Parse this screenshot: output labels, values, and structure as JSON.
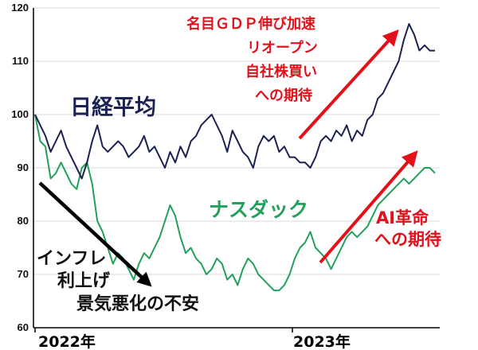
{
  "chart_data": {
    "type": "line",
    "ylim": [
      60,
      120
    ],
    "yticks": [
      "60",
      "70",
      "80",
      "90",
      "100",
      "110",
      "120"
    ],
    "x_labels": [
      "2022年",
      "2023年"
    ],
    "grid": "horizontal",
    "series": [
      {
        "name": "日経平均",
        "color": "#1b2252",
        "values": [
          100,
          98,
          96,
          93,
          95,
          97,
          94,
          92,
          90,
          88,
          91,
          95,
          98,
          94,
          93,
          94,
          95,
          94,
          92,
          93,
          94,
          96,
          93,
          94,
          92,
          90,
          93,
          91,
          94,
          92,
          95,
          96,
          98,
          99,
          100,
          98,
          96,
          93,
          97,
          95,
          93,
          92,
          90,
          94,
          96,
          95,
          96,
          93,
          94,
          92,
          92,
          91,
          91,
          90,
          92,
          95,
          96,
          95,
          97,
          96,
          98,
          95,
          97,
          96,
          99,
          100,
          103,
          104,
          106,
          108,
          110,
          114,
          117,
          115,
          112,
          113,
          112,
          112
        ]
      },
      {
        "name": "ナスダック",
        "color": "#22a05c",
        "values": [
          100,
          95,
          94,
          88,
          89,
          91,
          89,
          87,
          86,
          90,
          91,
          87,
          80,
          78,
          75,
          72,
          74,
          73,
          71,
          69,
          72,
          74,
          73,
          75,
          77,
          80,
          83,
          81,
          77,
          74,
          75,
          73,
          72,
          70,
          71,
          73,
          72,
          69,
          70,
          68,
          71,
          73,
          72,
          70,
          69,
          68,
          67,
          67,
          68,
          70,
          73,
          75,
          76,
          78,
          75,
          74,
          73,
          71,
          73,
          75,
          77,
          78,
          77,
          78,
          79,
          81,
          83,
          84,
          85,
          86,
          87,
          88,
          87,
          88,
          89,
          90,
          90,
          89
        ]
      }
    ],
    "annotations": {
      "nikkei_label": "日経平均",
      "nasdaq_label": "ナスダック",
      "nikkei_reasons": [
        "名目ＧＤＰ伸び加速",
        "リオープン",
        "自社株買い",
        "への期待"
      ],
      "nasdaq_reasons": [
        "AI革命",
        "への期待"
      ],
      "decline_reasons": [
        "インフレ",
        "利上げ",
        "景気悪化の不安"
      ]
    },
    "colors": {
      "nikkei": "#1b2252",
      "nasdaq": "#22a05c",
      "accent_red": "#e3101a",
      "axis": "#000000",
      "grid": "#d9d9d9"
    }
  }
}
